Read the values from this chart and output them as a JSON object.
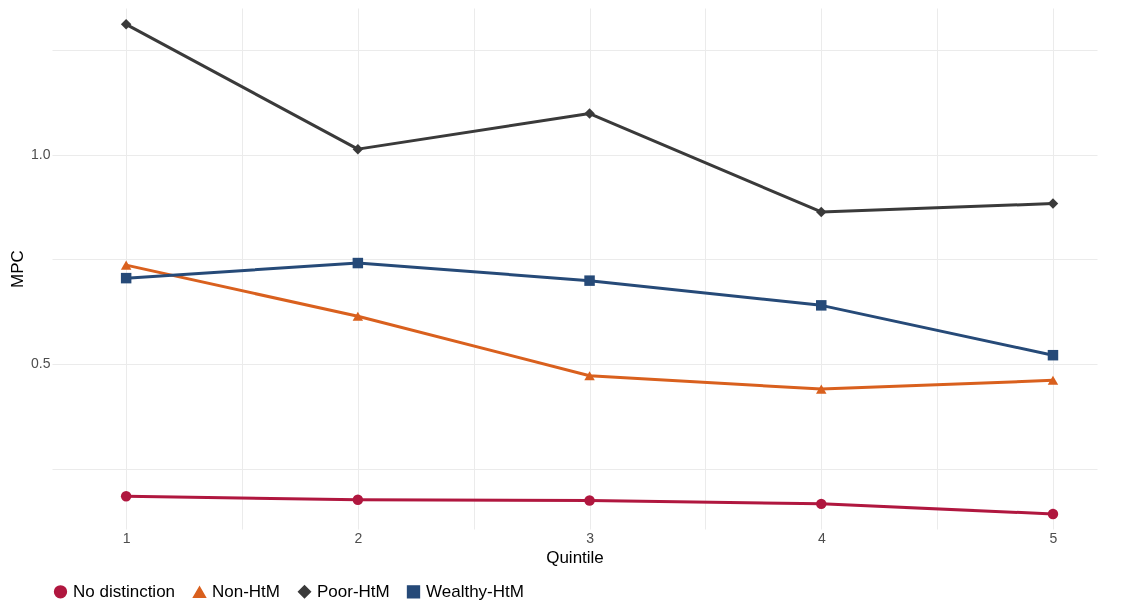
{
  "chart_data": {
    "type": "line",
    "xlabel": "Quintile",
    "ylabel": "MPC",
    "x": [
      1,
      2,
      3,
      4,
      5
    ],
    "series": [
      {
        "name": "No distinction",
        "color": "#b0173f",
        "marker": "circle",
        "values": [
          0.184,
          0.176,
          0.174,
          0.166,
          0.142
        ]
      },
      {
        "name": "Non-HtM",
        "color": "#d9601e",
        "marker": "triangle",
        "values": [
          0.736,
          0.614,
          0.472,
          0.44,
          0.461
        ]
      },
      {
        "name": "Poor-HtM",
        "color": "#3a3a3a",
        "marker": "diamond",
        "values": [
          1.311,
          1.013,
          1.098,
          0.863,
          0.883
        ]
      },
      {
        "name": "Wealthy-HtM",
        "color": "#264a78",
        "marker": "square",
        "values": [
          0.705,
          0.741,
          0.699,
          0.64,
          0.521
        ]
      }
    ],
    "xlim": [
      0.68,
      5.19
    ],
    "xticks": [
      1,
      {
        "value": 1.5,
        "label": null
      },
      2,
      {
        "value": 2.5,
        "label": null
      },
      3,
      {
        "value": 3.5,
        "label": null
      },
      4,
      {
        "value": 4.5,
        "label": null
      },
      5
    ],
    "ylim": [
      0.106,
      1.35
    ],
    "yticks": [
      {
        "value": 0.25,
        "label": null
      },
      0.5,
      {
        "value": 0.75,
        "label": null
      },
      {
        "value": 1,
        "label": "1.0"
      },
      {
        "value": 1.25,
        "label": null
      }
    ],
    "grid": true,
    "legend": "bottom",
    "line_style": "solid"
  }
}
